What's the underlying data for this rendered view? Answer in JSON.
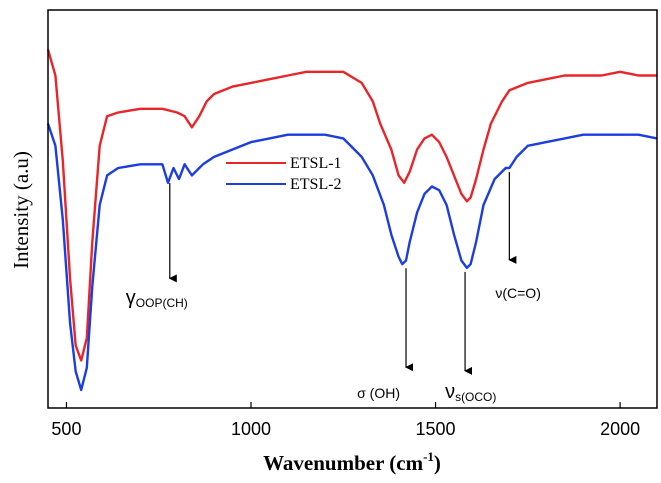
{
  "chart_data": {
    "type": "line",
    "xlabel": "Wavenumber (cm",
    "xlabel_sup": "-1",
    "xlabel_close": ")",
    "ylabel": "Intensity (a.u)",
    "xlim": [
      450,
      2100
    ],
    "x_ticks": [
      500,
      1000,
      1500,
      2000
    ],
    "y_ticks_shown": false,
    "grid": false,
    "legend_position": "upper-middle",
    "series": [
      {
        "name": "ETSL-1",
        "color": "#e8262a",
        "x": [
          450,
          470,
          490,
          510,
          525,
          540,
          555,
          570,
          590,
          610,
          640,
          700,
          760,
          800,
          820,
          840,
          860,
          880,
          900,
          950,
          1000,
          1050,
          1100,
          1150,
          1200,
          1250,
          1300,
          1330,
          1350,
          1380,
          1400,
          1415,
          1430,
          1450,
          1470,
          1490,
          1510,
          1530,
          1550,
          1570,
          1585,
          1595,
          1610,
          1630,
          1650,
          1680,
          1700,
          1750,
          1800,
          1850,
          1900,
          1950,
          2000,
          2050,
          2100
        ],
        "values": [
          92,
          85,
          62,
          30,
          12,
          8,
          14,
          40,
          66,
          74,
          75,
          76,
          76,
          75,
          74,
          71,
          74,
          78,
          80,
          82,
          83,
          84,
          85,
          86,
          86,
          86,
          83,
          78,
          72,
          65,
          58,
          56,
          59,
          65,
          68,
          69,
          67,
          63,
          58,
          53,
          51,
          52,
          57,
          65,
          72,
          78,
          81,
          83,
          84,
          85,
          85,
          85,
          86,
          85,
          85
        ]
      },
      {
        "name": "ETSL-2",
        "color": "#1c3de0",
        "x": [
          450,
          470,
          490,
          510,
          525,
          540,
          555,
          570,
          590,
          610,
          640,
          700,
          760,
          775,
          790,
          805,
          820,
          840,
          870,
          900,
          950,
          1000,
          1050,
          1100,
          1150,
          1200,
          1250,
          1300,
          1330,
          1360,
          1380,
          1400,
          1410,
          1420,
          1430,
          1450,
          1470,
          1490,
          1510,
          1530,
          1550,
          1570,
          1585,
          1595,
          1610,
          1630,
          1660,
          1690,
          1700,
          1720,
          1750,
          1800,
          1850,
          1900,
          1950,
          2000,
          2050,
          2100
        ],
        "values": [
          72,
          66,
          46,
          18,
          5,
          0,
          6,
          28,
          50,
          58,
          60,
          61,
          61,
          56,
          60,
          57,
          61,
          58,
          61,
          63,
          65,
          67,
          68,
          69,
          69,
          69,
          68,
          63,
          58,
          50,
          42,
          36,
          34,
          35,
          40,
          48,
          53,
          55,
          54,
          50,
          42,
          35,
          33,
          34,
          40,
          50,
          57,
          60,
          60,
          63,
          66,
          67,
          68,
          69,
          69,
          69,
          69,
          68
        ]
      }
    ],
    "annotations": [
      {
        "text_main": "γ",
        "text_sub": "OOP(CH)",
        "arrow_x": 780,
        "arrow_from": 57,
        "arrow_to": 28
      },
      {
        "text_main": "σ (OH)",
        "text_sub": "",
        "arrow_x": 1420,
        "arrow_from": 34,
        "arrow_to": 4
      },
      {
        "text_main": "ν",
        "text_sub": "s(OCO)",
        "arrow_x": 1580,
        "arrow_from": 33,
        "arrow_to": 3
      },
      {
        "text_main": "ν(C=O)",
        "text_sub": "",
        "arrow_x": 1700,
        "arrow_from": 60,
        "arrow_to": 33
      }
    ]
  }
}
